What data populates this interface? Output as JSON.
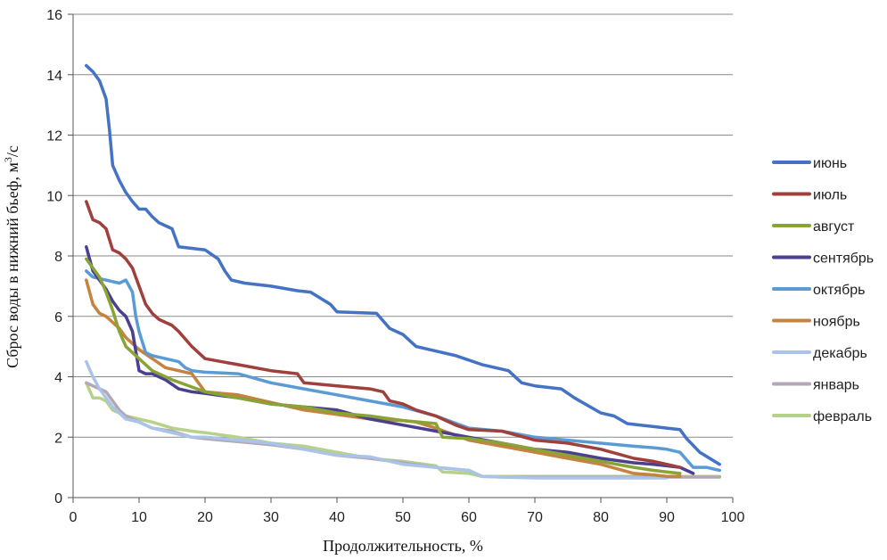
{
  "chart_data": {
    "type": "line",
    "xlabel": "Продолжительность, %",
    "ylabel": "Сброс воды в нижний бьеф, м",
    "ylabel_sup": "3",
    "ylabel_tail": "/с",
    "xlim": [
      0,
      100
    ],
    "ylim": [
      0,
      16
    ],
    "xticks": [
      "0",
      "10",
      "20",
      "30",
      "40",
      "50",
      "60",
      "70",
      "80",
      "90",
      "100"
    ],
    "yticks": [
      "0",
      "2",
      "4",
      "6",
      "8",
      "10",
      "12",
      "14",
      "16"
    ],
    "grid": "horizontal",
    "legend_position": "right",
    "series": [
      {
        "name": "июнь",
        "color": "#4472c4",
        "x": [
          2,
          3,
          4,
          5,
          5.5,
          6,
          7,
          8,
          9,
          10,
          11,
          12,
          13,
          14,
          15,
          16,
          18,
          20,
          22,
          23,
          24,
          26,
          30,
          34,
          36,
          39,
          40,
          46,
          48,
          50,
          52,
          55,
          58,
          62,
          66,
          68,
          70,
          74,
          76,
          80,
          82,
          84,
          86,
          88,
          90,
          92,
          93,
          95,
          98
        ],
        "y": [
          14.3,
          14.1,
          13.8,
          13.2,
          12.2,
          11.0,
          10.5,
          10.1,
          9.8,
          9.55,
          9.55,
          9.3,
          9.1,
          9.0,
          8.9,
          8.3,
          8.25,
          8.2,
          7.9,
          7.5,
          7.2,
          7.1,
          7.0,
          6.85,
          6.8,
          6.4,
          6.15,
          6.1,
          5.6,
          5.4,
          5.0,
          4.85,
          4.7,
          4.4,
          4.2,
          3.8,
          3.7,
          3.6,
          3.3,
          2.8,
          2.7,
          2.45,
          2.4,
          2.35,
          2.3,
          2.25,
          1.95,
          1.5,
          1.1
        ]
      },
      {
        "name": "июль",
        "color": "#a0403c",
        "x": [
          2,
          3,
          4,
          5,
          6,
          7,
          8,
          9,
          10,
          11,
          12,
          13,
          14,
          15,
          16,
          18,
          20,
          25,
          30,
          34,
          35,
          40,
          45,
          47,
          48,
          50,
          52,
          55,
          58,
          60,
          65,
          70,
          75,
          80,
          85,
          88,
          90,
          92
        ],
        "y": [
          9.8,
          9.2,
          9.1,
          8.9,
          8.2,
          8.1,
          7.9,
          7.6,
          7.0,
          6.4,
          6.1,
          5.9,
          5.8,
          5.7,
          5.5,
          5.0,
          4.6,
          4.4,
          4.2,
          4.1,
          3.8,
          3.7,
          3.6,
          3.5,
          3.2,
          3.1,
          2.9,
          2.7,
          2.4,
          2.25,
          2.2,
          1.9,
          1.8,
          1.6,
          1.3,
          1.2,
          1.1,
          1.0
        ]
      },
      {
        "name": "август",
        "color": "#8aa335",
        "x": [
          2,
          3,
          4,
          5,
          6,
          7,
          8,
          9,
          10,
          12,
          15,
          20,
          25,
          30,
          35,
          40,
          45,
          50,
          55,
          56,
          60,
          65,
          70,
          75,
          80,
          85,
          88,
          90,
          92
        ],
        "y": [
          7.9,
          7.6,
          7.3,
          6.8,
          6.2,
          5.5,
          5.0,
          4.8,
          4.6,
          4.2,
          3.9,
          3.5,
          3.3,
          3.1,
          3.0,
          2.8,
          2.7,
          2.55,
          2.45,
          2.0,
          1.95,
          1.8,
          1.6,
          1.4,
          1.2,
          1.0,
          0.9,
          0.85,
          0.8
        ]
      },
      {
        "name": "сентябрь",
        "color": "#4b3f8f",
        "x": [
          2,
          3,
          4,
          5,
          6,
          7,
          8,
          9,
          10,
          11,
          12,
          14,
          16,
          18,
          20,
          25,
          30,
          35,
          40,
          45,
          50,
          55,
          60,
          65,
          70,
          75,
          80,
          85,
          88,
          90,
          92,
          94
        ],
        "y": [
          8.3,
          7.5,
          7.2,
          6.9,
          6.5,
          6.2,
          6.0,
          5.5,
          4.2,
          4.1,
          4.1,
          3.9,
          3.6,
          3.5,
          3.45,
          3.3,
          3.1,
          3.0,
          2.9,
          2.6,
          2.4,
          2.2,
          2.0,
          1.8,
          1.6,
          1.5,
          1.3,
          1.15,
          1.1,
          1.05,
          1.0,
          0.8
        ]
      },
      {
        "name": "октябрь",
        "color": "#5b9bd5",
        "x": [
          2,
          3,
          4,
          5,
          6,
          7,
          8,
          9,
          9.5,
          10,
          11,
          12,
          14,
          16,
          17,
          18,
          20,
          25,
          30,
          35,
          40,
          45,
          50,
          55,
          60,
          65,
          70,
          75,
          80,
          85,
          88,
          90,
          92,
          94,
          96,
          98
        ],
        "y": [
          7.5,
          7.3,
          7.25,
          7.2,
          7.15,
          7.1,
          7.2,
          6.8,
          6.0,
          5.5,
          4.8,
          4.7,
          4.6,
          4.5,
          4.3,
          4.2,
          4.15,
          4.1,
          3.8,
          3.6,
          3.4,
          3.2,
          3.0,
          2.7,
          2.3,
          2.2,
          2.0,
          1.9,
          1.8,
          1.7,
          1.65,
          1.6,
          1.5,
          1.0,
          1.0,
          0.9
        ]
      },
      {
        "name": "ноябрь",
        "color": "#c6823f",
        "x": [
          2,
          3,
          4,
          5,
          6,
          7,
          8,
          10,
          12,
          14,
          16,
          18,
          19,
          20,
          25,
          30,
          35,
          40,
          45,
          50,
          52,
          55,
          60,
          65,
          70,
          75,
          80,
          85,
          88,
          90,
          92
        ],
        "y": [
          7.2,
          6.4,
          6.1,
          6.0,
          5.8,
          5.6,
          5.3,
          4.9,
          4.6,
          4.3,
          4.2,
          4.1,
          3.8,
          3.5,
          3.4,
          3.15,
          2.9,
          2.75,
          2.6,
          2.55,
          2.5,
          2.3,
          1.9,
          1.7,
          1.5,
          1.3,
          1.1,
          0.8,
          0.75,
          0.7,
          0.7
        ]
      },
      {
        "name": "декабрь",
        "color": "#a9c4e8",
        "x": [
          2,
          3,
          4,
          5,
          6,
          7,
          8,
          10,
          12,
          14,
          16,
          18,
          20,
          25,
          30,
          35,
          40,
          45,
          50,
          55,
          60,
          62,
          65,
          70,
          75,
          80,
          85,
          88,
          90
        ],
        "y": [
          4.5,
          4.0,
          3.6,
          3.3,
          3.0,
          2.8,
          2.6,
          2.5,
          2.3,
          2.2,
          2.1,
          2.0,
          2.0,
          1.9,
          1.8,
          1.6,
          1.4,
          1.35,
          1.1,
          1.0,
          0.9,
          0.7,
          0.68,
          0.65,
          0.65,
          0.65,
          0.65,
          0.65,
          0.65
        ]
      },
      {
        "name": "январь",
        "color": "#b4a7b5",
        "x": [
          2,
          3,
          4,
          5,
          6,
          7,
          8,
          10,
          12,
          15,
          18,
          20,
          25,
          30,
          35,
          40,
          45,
          50,
          55,
          60,
          62,
          65,
          70,
          75,
          80,
          85,
          90,
          95,
          98
        ],
        "y": [
          3.8,
          3.7,
          3.6,
          3.5,
          3.2,
          2.9,
          2.7,
          2.5,
          2.3,
          2.2,
          2.0,
          1.95,
          1.85,
          1.75,
          1.6,
          1.4,
          1.3,
          1.15,
          1.0,
          0.9,
          0.7,
          0.68,
          0.68,
          0.68,
          0.68,
          0.68,
          0.68,
          0.68,
          0.68
        ]
      },
      {
        "name": "февраль",
        "color": "#b5d18a",
        "x": [
          2,
          3,
          4,
          5,
          6,
          7,
          8,
          10,
          12,
          15,
          18,
          20,
          25,
          30,
          35,
          40,
          45,
          50,
          55,
          56,
          60,
          62,
          65,
          70,
          75,
          80,
          85,
          90,
          95,
          98
        ],
        "y": [
          3.8,
          3.3,
          3.3,
          3.2,
          2.9,
          2.8,
          2.7,
          2.6,
          2.5,
          2.3,
          2.2,
          2.15,
          2.0,
          1.8,
          1.7,
          1.5,
          1.3,
          1.2,
          1.05,
          0.85,
          0.8,
          0.7,
          0.7,
          0.7,
          0.7,
          0.7,
          0.7,
          0.7,
          0.7,
          0.7
        ]
      }
    ]
  }
}
